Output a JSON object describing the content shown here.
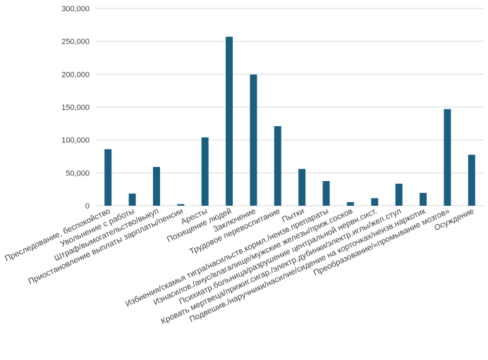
{
  "chart_data": {
    "type": "bar",
    "title": "",
    "xlabel": "",
    "ylabel": "",
    "ylim": [
      0,
      300000
    ],
    "yticks": [
      "0",
      "50,000",
      "100,000",
      "150,000",
      "200,000",
      "250,000",
      "300,000"
    ],
    "grid": true,
    "bar_color": "#1a5f80",
    "categories": [
      "Преследование, беспокойство",
      "Увольнение с работы",
      "Штраф/вымогательство/выкуп",
      "Приостановление выплаты зарплаты/пенсии",
      "Аресты",
      "Похищение людей",
      "Заключение",
      "Трудовое перевоспитание",
      "Пытки",
      "Избиения/скамья тигра/насильств.кормл./неизв.препараты",
      "Изнасилов./анус/влагалище/мужские железы/приж.сосков",
      "Психиатр.больница/разрушение центральной нервн.сист.",
      "Кровать мертвеца/прижиг.сигар./электр.дубинки/электр.иглы/жел.стул",
      "Подвешив./наручники/насилие/сидение на корточках/неизв.наркотик",
      "Преобразование/«промывание мозгов»",
      "Осуждение"
    ],
    "values": [
      86000,
      18500,
      59000,
      2500,
      104000,
      257000,
      199500,
      121000,
      56000,
      37500,
      5500,
      11500,
      33500,
      19500,
      147000,
      77500
    ]
  }
}
